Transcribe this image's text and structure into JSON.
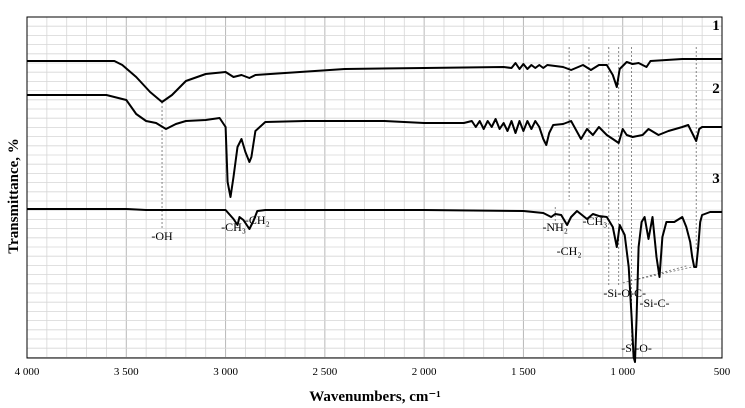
{
  "chart_data": {
    "type": "line",
    "xlabel": "Wavenumbers, cm⁻¹",
    "ylabel": "Transmittance, %",
    "xlim": [
      4000,
      500
    ],
    "x_reversed": true,
    "grid": true,
    "x_ticks": [
      4000,
      3500,
      3000,
      2500,
      2000,
      1500,
      1000,
      500
    ],
    "x_tick_labels": [
      "4 000",
      "3 500",
      "3 000",
      "2 500",
      "2 000",
      "1 500",
      "1 000",
      "500"
    ],
    "series": [
      {
        "name": "1",
        "points": [
          [
            4000,
            44
          ],
          [
            3650,
            44
          ],
          [
            3560,
            44
          ],
          [
            3520,
            48
          ],
          [
            3450,
            60
          ],
          [
            3380,
            75
          ],
          [
            3320,
            85
          ],
          [
            3270,
            78
          ],
          [
            3200,
            64
          ],
          [
            3100,
            57
          ],
          [
            3000,
            55
          ],
          [
            2960,
            60
          ],
          [
            2920,
            58
          ],
          [
            2880,
            61
          ],
          [
            2850,
            58
          ],
          [
            2700,
            56
          ],
          [
            2400,
            52
          ],
          [
            2000,
            51
          ],
          [
            1600,
            50
          ],
          [
            1560,
            51
          ],
          [
            1540,
            46
          ],
          [
            1520,
            52
          ],
          [
            1500,
            47
          ],
          [
            1480,
            52
          ],
          [
            1460,
            48
          ],
          [
            1440,
            51
          ],
          [
            1420,
            48
          ],
          [
            1400,
            51
          ],
          [
            1380,
            48
          ],
          [
            1300,
            50
          ],
          [
            1260,
            53
          ],
          [
            1200,
            48
          ],
          [
            1160,
            53
          ],
          [
            1120,
            48
          ],
          [
            1080,
            48
          ],
          [
            1050,
            58
          ],
          [
            1030,
            70
          ],
          [
            1015,
            52
          ],
          [
            980,
            45
          ],
          [
            950,
            47
          ],
          [
            920,
            46
          ],
          [
            880,
            50
          ],
          [
            860,
            44
          ],
          [
            700,
            42
          ],
          [
            500,
            42
          ]
        ]
      },
      {
        "name": "2",
        "points": [
          [
            4000,
            78
          ],
          [
            3600,
            78
          ],
          [
            3500,
            83
          ],
          [
            3450,
            97
          ],
          [
            3400,
            104
          ],
          [
            3350,
            106
          ],
          [
            3300,
            112
          ],
          [
            3250,
            107
          ],
          [
            3200,
            104
          ],
          [
            3100,
            103
          ],
          [
            3030,
            101
          ],
          [
            3000,
            110
          ],
          [
            2990,
            165
          ],
          [
            2975,
            180
          ],
          [
            2960,
            160
          ],
          [
            2940,
            130
          ],
          [
            2920,
            122
          ],
          [
            2900,
            135
          ],
          [
            2880,
            145
          ],
          [
            2870,
            140
          ],
          [
            2850,
            114
          ],
          [
            2800,
            105
          ],
          [
            2600,
            104
          ],
          [
            2400,
            104
          ],
          [
            2200,
            104
          ],
          [
            2000,
            106
          ],
          [
            1800,
            106
          ],
          [
            1760,
            104
          ],
          [
            1740,
            110
          ],
          [
            1720,
            104
          ],
          [
            1700,
            112
          ],
          [
            1680,
            104
          ],
          [
            1660,
            110
          ],
          [
            1640,
            102
          ],
          [
            1620,
            112
          ],
          [
            1600,
            106
          ],
          [
            1580,
            114
          ],
          [
            1560,
            104
          ],
          [
            1540,
            116
          ],
          [
            1520,
            104
          ],
          [
            1500,
            114
          ],
          [
            1480,
            104
          ],
          [
            1460,
            112
          ],
          [
            1440,
            104
          ],
          [
            1420,
            110
          ],
          [
            1400,
            122
          ],
          [
            1385,
            128
          ],
          [
            1370,
            116
          ],
          [
            1350,
            108
          ],
          [
            1300,
            107
          ],
          [
            1260,
            104
          ],
          [
            1210,
            122
          ],
          [
            1180,
            112
          ],
          [
            1150,
            118
          ],
          [
            1120,
            110
          ],
          [
            1080,
            118
          ],
          [
            1050,
            122
          ],
          [
            1020,
            126
          ],
          [
            1000,
            112
          ],
          [
            980,
            118
          ],
          [
            950,
            120
          ],
          [
            900,
            118
          ],
          [
            870,
            112
          ],
          [
            820,
            118
          ],
          [
            770,
            114
          ],
          [
            700,
            110
          ],
          [
            670,
            108
          ],
          [
            650,
            116
          ],
          [
            630,
            124
          ],
          [
            615,
            112
          ],
          [
            600,
            110
          ],
          [
            500,
            110
          ]
        ]
      },
      {
        "name": "3",
        "points": [
          [
            4000,
            192
          ],
          [
            3500,
            192
          ],
          [
            3400,
            193
          ],
          [
            3300,
            193
          ],
          [
            3200,
            193
          ],
          [
            3100,
            193
          ],
          [
            3000,
            193
          ],
          [
            2960,
            202
          ],
          [
            2940,
            208
          ],
          [
            2930,
            200
          ],
          [
            2910,
            203
          ],
          [
            2880,
            212
          ],
          [
            2860,
            204
          ],
          [
            2840,
            194
          ],
          [
            2800,
            193
          ],
          [
            2500,
            193
          ],
          [
            2000,
            193
          ],
          [
            1500,
            194
          ],
          [
            1400,
            196
          ],
          [
            1360,
            200
          ],
          [
            1340,
            197
          ],
          [
            1310,
            198
          ],
          [
            1280,
            208
          ],
          [
            1260,
            200
          ],
          [
            1230,
            194
          ],
          [
            1180,
            202
          ],
          [
            1150,
            197
          ],
          [
            1120,
            199
          ],
          [
            1080,
            200
          ],
          [
            1050,
            210
          ],
          [
            1030,
            230
          ],
          [
            1015,
            208
          ],
          [
            990,
            218
          ],
          [
            970,
            250
          ],
          [
            955,
            300
          ],
          [
            945,
            340
          ],
          [
            938,
            345
          ],
          [
            930,
            300
          ],
          [
            920,
            230
          ],
          [
            905,
            205
          ],
          [
            890,
            200
          ],
          [
            870,
            222
          ],
          [
            850,
            200
          ],
          [
            830,
            240
          ],
          [
            815,
            260
          ],
          [
            800,
            220
          ],
          [
            780,
            205
          ],
          [
            740,
            205
          ],
          [
            700,
            200
          ],
          [
            680,
            210
          ],
          [
            660,
            225
          ],
          [
            650,
            240
          ],
          [
            640,
            250
          ],
          [
            630,
            250
          ],
          [
            620,
            230
          ],
          [
            610,
            205
          ],
          [
            600,
            198
          ],
          [
            560,
            195
          ],
          [
            500,
            195
          ]
        ]
      }
    ],
    "annotations": [
      {
        "text": "-OH",
        "x": 3320
      },
      {
        "text": "-CH₃",
        "x": 2960
      },
      {
        "text": "-CH₂",
        "x": 2840
      },
      {
        "text": "-NH₂",
        "x": 1340
      },
      {
        "text": "-CH₂",
        "x": 1270
      },
      {
        "text": "-CH₃",
        "x": 1140
      },
      {
        "text": "-Si-O-C-",
        "x": 990
      },
      {
        "text": "-Si-C-",
        "x": 840
      },
      {
        "text": "-Si-O-",
        "x": 930
      }
    ]
  }
}
